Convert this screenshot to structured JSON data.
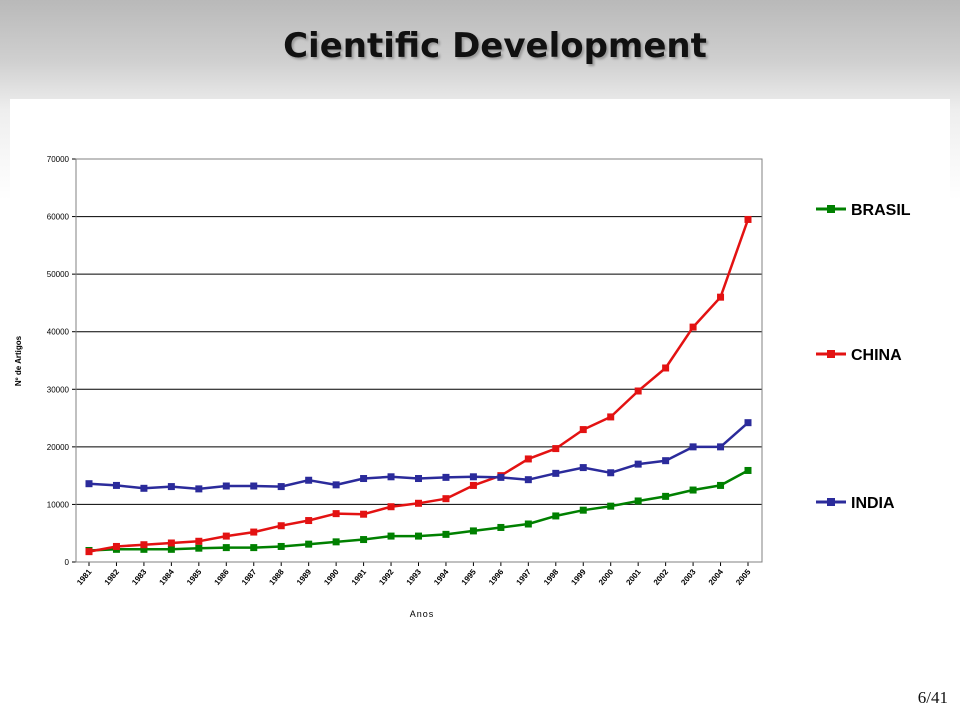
{
  "slide": {
    "title": "Cientific Development",
    "page_number": "6/41"
  },
  "colors": {
    "BRASIL": "#008000",
    "CHINA": "#e31212",
    "INDIA": "#2b2b9b"
  },
  "chart_data": {
    "type": "line",
    "xlabel": "Anos",
    "ylabel": "Nº de Artigos",
    "ylim": [
      0,
      70000
    ],
    "yticks": [
      0,
      10000,
      20000,
      30000,
      40000,
      50000,
      60000,
      70000
    ],
    "grid": "horizontal",
    "legend_position": "right",
    "categories": [
      "1981",
      "1982",
      "1983",
      "1984",
      "1985",
      "1986",
      "1987",
      "1988",
      "1989",
      "1990",
      "1991",
      "1992",
      "1993",
      "1994",
      "1995",
      "1996",
      "1997",
      "1998",
      "1999",
      "2000",
      "2001",
      "2002",
      "2003",
      "2004",
      "2005"
    ],
    "series": [
      {
        "name": "BRASIL",
        "values": [
          2000,
          2200,
          2200,
          2200,
          2400,
          2500,
          2500,
          2700,
          3100,
          3500,
          3900,
          4500,
          4500,
          4800,
          5400,
          6000,
          6600,
          8000,
          9000,
          9700,
          10600,
          11400,
          12500,
          13300,
          15900
        ]
      },
      {
        "name": "CHINA",
        "values": [
          1800,
          2700,
          3000,
          3300,
          3600,
          4500,
          5200,
          6300,
          7200,
          8400,
          8300,
          9600,
          10200,
          11000,
          13300,
          15000,
          17900,
          19700,
          23000,
          25200,
          29700,
          33700,
          40800,
          46000,
          59500
        ]
      },
      {
        "name": "INDIA",
        "values": [
          13600,
          13300,
          12800,
          13100,
          12700,
          13200,
          13200,
          13100,
          14200,
          13400,
          14500,
          14800,
          14500,
          14700,
          14800,
          14700,
          14300,
          15400,
          16400,
          15500,
          17000,
          17600,
          20000,
          20000,
          24200
        ]
      }
    ]
  }
}
